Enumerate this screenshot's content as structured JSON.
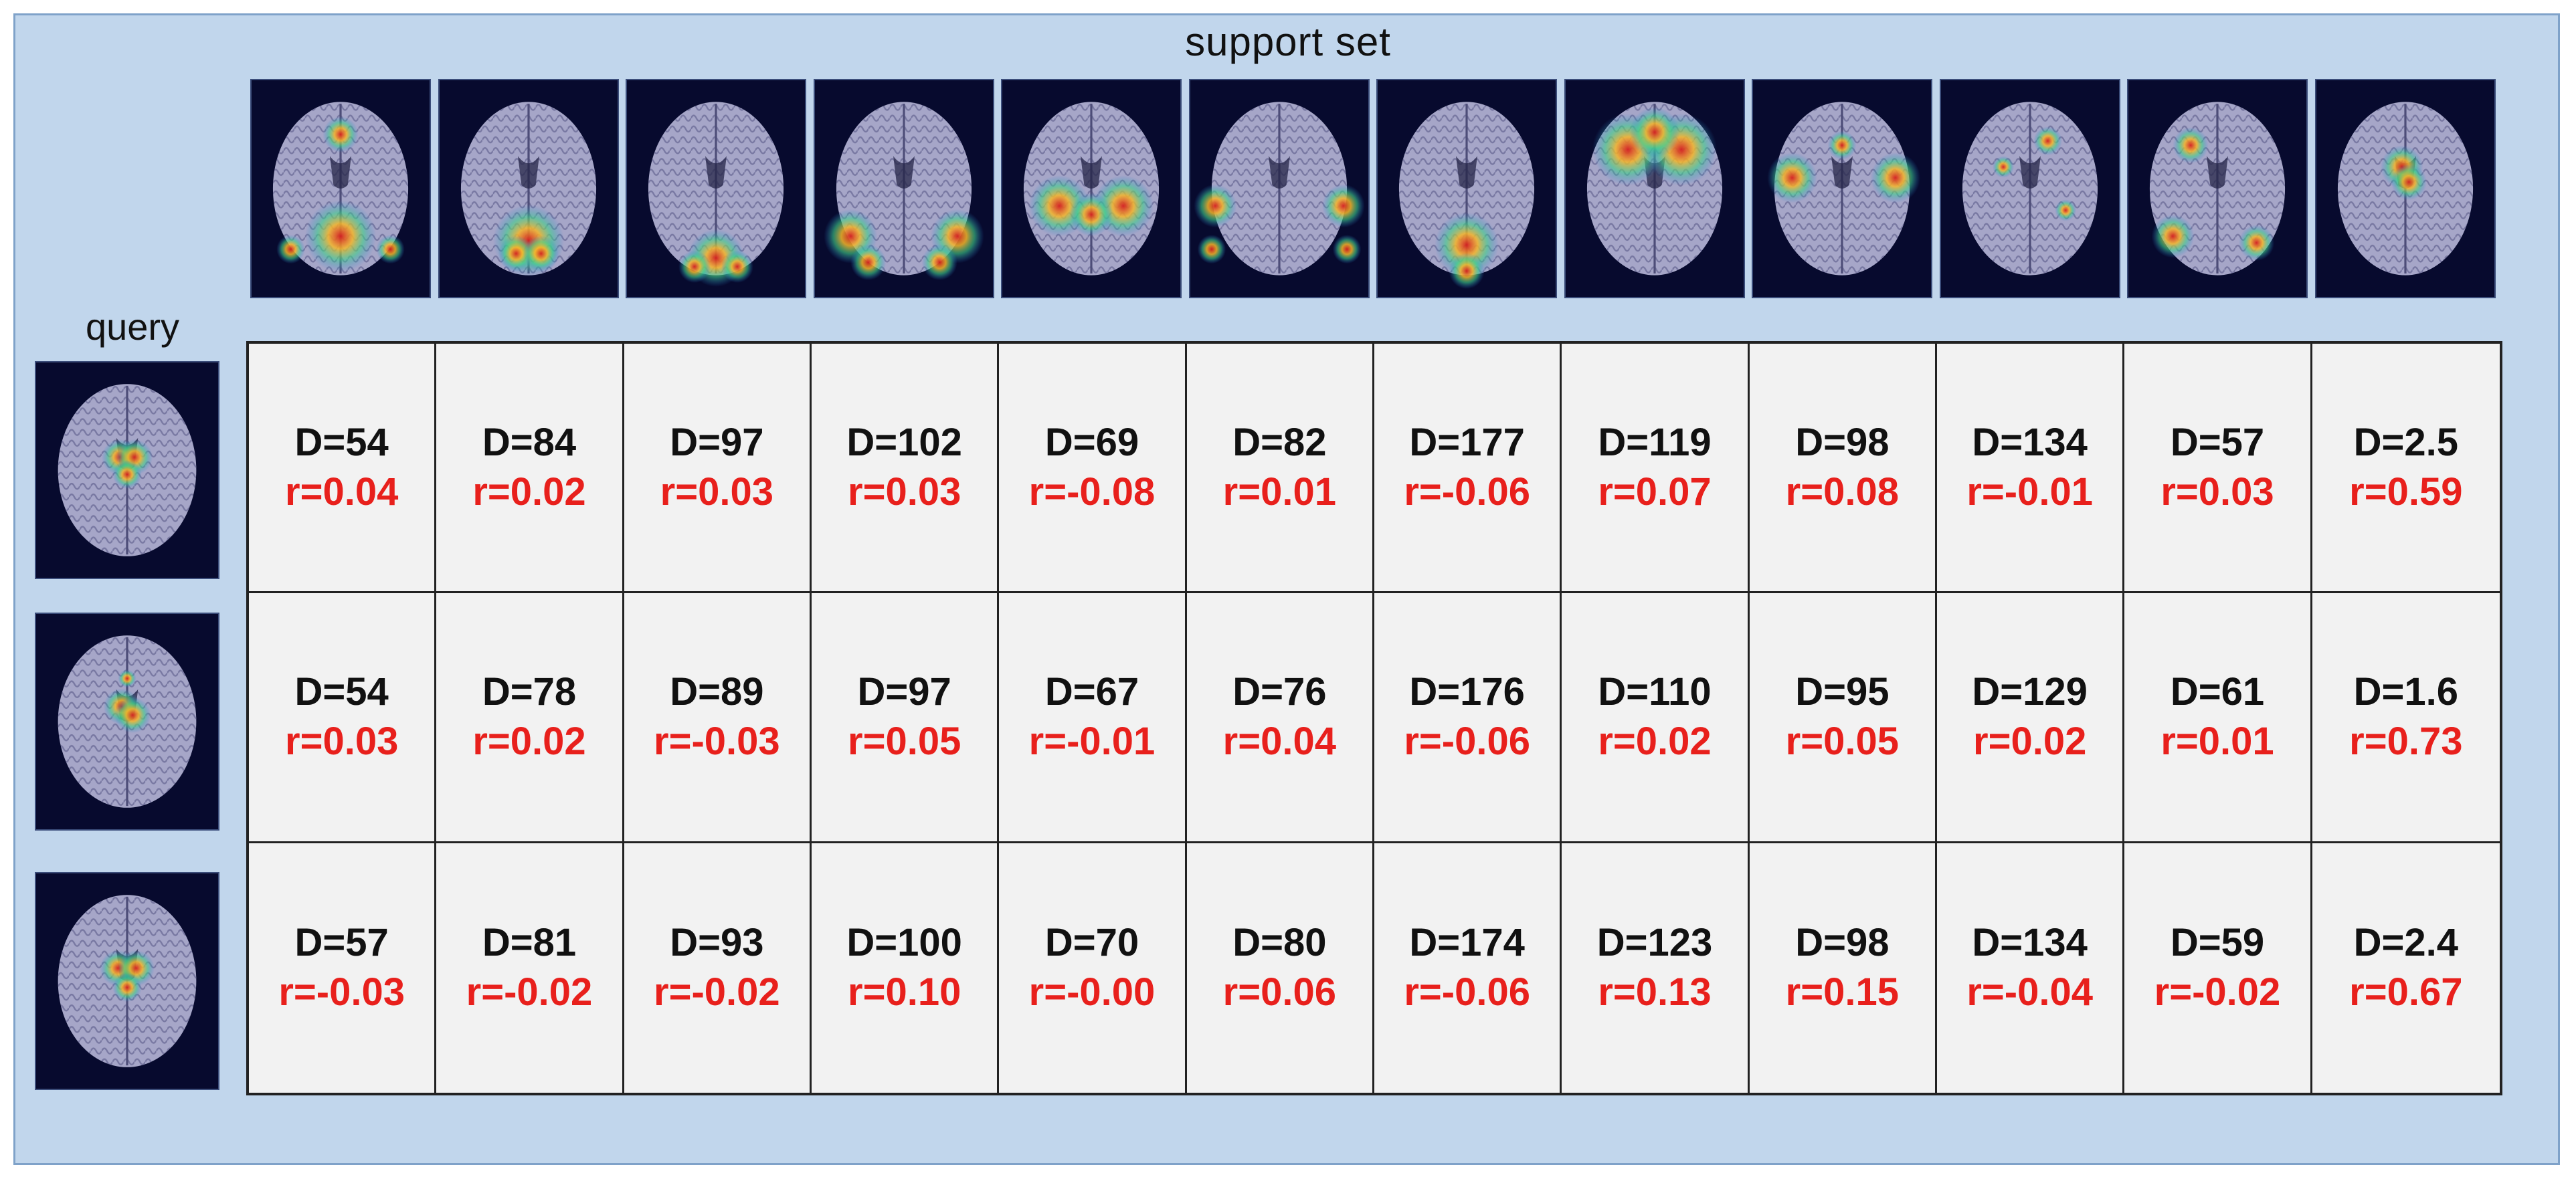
{
  "labels": {
    "support_set": "support set",
    "query": "query"
  },
  "support_images": [
    {
      "icon": "brain-mri-icon",
      "heat": [
        [
          0.5,
          0.72,
          0.2
        ],
        [
          0.5,
          0.25,
          0.1
        ],
        [
          0.22,
          0.78,
          0.08
        ],
        [
          0.78,
          0.78,
          0.08
        ]
      ]
    },
    {
      "icon": "brain-mri-icon",
      "heat": [
        [
          0.5,
          0.74,
          0.2
        ],
        [
          0.43,
          0.8,
          0.1
        ],
        [
          0.57,
          0.8,
          0.1
        ]
      ]
    },
    {
      "icon": "brain-mri-icon",
      "heat": [
        [
          0.5,
          0.82,
          0.16
        ],
        [
          0.38,
          0.86,
          0.09
        ],
        [
          0.62,
          0.86,
          0.09
        ]
      ]
    },
    {
      "icon": "brain-mri-icon",
      "heat": [
        [
          0.2,
          0.72,
          0.15
        ],
        [
          0.8,
          0.72,
          0.15
        ],
        [
          0.3,
          0.84,
          0.1
        ],
        [
          0.7,
          0.84,
          0.1
        ]
      ]
    },
    {
      "icon": "brain-mri-icon",
      "heat": [
        [
          0.32,
          0.58,
          0.17
        ],
        [
          0.68,
          0.58,
          0.17
        ],
        [
          0.5,
          0.62,
          0.12
        ]
      ]
    },
    {
      "icon": "brain-mri-icon",
      "heat": [
        [
          0.14,
          0.58,
          0.12
        ],
        [
          0.86,
          0.58,
          0.12
        ],
        [
          0.12,
          0.78,
          0.08
        ],
        [
          0.88,
          0.78,
          0.08
        ]
      ]
    },
    {
      "icon": "brain-mri-icon",
      "heat": [
        [
          0.5,
          0.76,
          0.18
        ],
        [
          0.5,
          0.88,
          0.1
        ]
      ]
    },
    {
      "icon": "brain-mri-icon",
      "heat": [
        [
          0.35,
          0.32,
          0.2
        ],
        [
          0.65,
          0.32,
          0.2
        ],
        [
          0.5,
          0.24,
          0.14
        ]
      ]
    },
    {
      "icon": "brain-mri-icon",
      "heat": [
        [
          0.22,
          0.45,
          0.14
        ],
        [
          0.8,
          0.45,
          0.14
        ],
        [
          0.5,
          0.3,
          0.08
        ]
      ]
    },
    {
      "icon": "brain-mri-icon",
      "heat": [
        [
          0.6,
          0.28,
          0.08
        ],
        [
          0.35,
          0.4,
          0.06
        ],
        [
          0.7,
          0.6,
          0.06
        ]
      ]
    },
    {
      "icon": "brain-mri-icon",
      "heat": [
        [
          0.25,
          0.72,
          0.12
        ],
        [
          0.35,
          0.3,
          0.1
        ],
        [
          0.72,
          0.75,
          0.1
        ]
      ]
    },
    {
      "icon": "brain-mri-icon",
      "heat": [
        [
          0.48,
          0.4,
          0.12
        ],
        [
          0.52,
          0.47,
          0.1
        ]
      ]
    }
  ],
  "query_images": [
    {
      "icon": "brain-mri-icon",
      "heat": [
        [
          0.46,
          0.44,
          0.1
        ],
        [
          0.54,
          0.44,
          0.1
        ],
        [
          0.5,
          0.52,
          0.08
        ]
      ]
    },
    {
      "icon": "brain-mri-icon",
      "heat": [
        [
          0.47,
          0.43,
          0.1
        ],
        [
          0.53,
          0.47,
          0.1
        ],
        [
          0.5,
          0.3,
          0.05
        ]
      ]
    },
    {
      "icon": "brain-mri-icon",
      "heat": [
        [
          0.45,
          0.44,
          0.1
        ],
        [
          0.55,
          0.44,
          0.1
        ],
        [
          0.5,
          0.53,
          0.08
        ]
      ]
    }
  ],
  "rows": [
    {
      "cells": [
        {
          "d": "D=54",
          "r": "r=0.04"
        },
        {
          "d": "D=84",
          "r": "r=0.02"
        },
        {
          "d": "D=97",
          "r": "r=0.03"
        },
        {
          "d": "D=102",
          "r": "r=0.03"
        },
        {
          "d": "D=69",
          "r": "r=-0.08"
        },
        {
          "d": "D=82",
          "r": "r=0.01"
        },
        {
          "d": "D=177",
          "r": "r=-0.06"
        },
        {
          "d": "D=119",
          "r": "r=0.07"
        },
        {
          "d": "D=98",
          "r": "r=0.08"
        },
        {
          "d": "D=134",
          "r": "r=-0.01"
        },
        {
          "d": "D=57",
          "r": "r=0.03"
        },
        {
          "d": "D=2.5",
          "r": "r=0.59"
        }
      ]
    },
    {
      "cells": [
        {
          "d": "D=54",
          "r": "r=0.03"
        },
        {
          "d": "D=78",
          "r": "r=0.02"
        },
        {
          "d": "D=89",
          "r": "r=-0.03"
        },
        {
          "d": "D=97",
          "r": "r=0.05"
        },
        {
          "d": "D=67",
          "r": "r=-0.01"
        },
        {
          "d": "D=76",
          "r": "r=0.04"
        },
        {
          "d": "D=176",
          "r": "r=-0.06"
        },
        {
          "d": "D=110",
          "r": "r=0.02"
        },
        {
          "d": "D=95",
          "r": "r=0.05"
        },
        {
          "d": "D=129",
          "r": "r=0.02"
        },
        {
          "d": "D=61",
          "r": "r=0.01"
        },
        {
          "d": "D=1.6",
          "r": "r=0.73"
        }
      ]
    },
    {
      "cells": [
        {
          "d": "D=57",
          "r": "r=-0.03"
        },
        {
          "d": "D=81",
          "r": "r=-0.02"
        },
        {
          "d": "D=93",
          "r": "r=-0.02"
        },
        {
          "d": "D=100",
          "r": "r=0.10"
        },
        {
          "d": "D=70",
          "r": "r=-0.00"
        },
        {
          "d": "D=80",
          "r": "r=0.06"
        },
        {
          "d": "D=174",
          "r": "r=-0.06"
        },
        {
          "d": "D=123",
          "r": "r=0.13"
        },
        {
          "d": "D=98",
          "r": "r=0.15"
        },
        {
          "d": "D=134",
          "r": "r=-0.04"
        },
        {
          "d": "D=59",
          "r": "r=-0.02"
        },
        {
          "d": "D=2.4",
          "r": "r=0.67"
        }
      ]
    }
  ],
  "colors": {
    "panel_bg": "#c1d6ec",
    "thumb_bg": "#070a2e",
    "brain_tissue": "#a6a6c8",
    "r_value": "#e8201c"
  }
}
